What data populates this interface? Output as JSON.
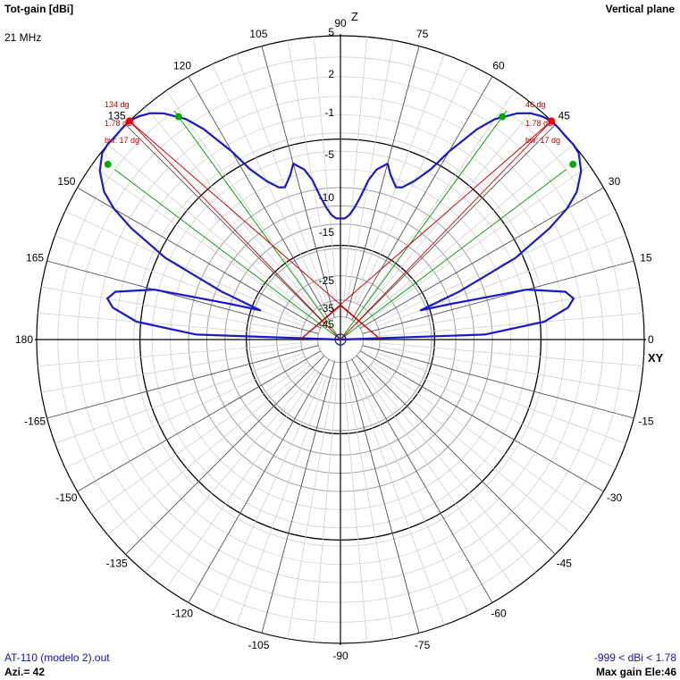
{
  "header": {
    "title": "Tot-gain [dBi]",
    "frequency": "21 MHz",
    "plane": "Vertical plane"
  },
  "footer": {
    "file": "AT-110 (modelo 2).out",
    "azimuth": "Azi.= 42",
    "range": "-999 < dBi < 1.78",
    "max_gain": "Max gain Ele:46"
  },
  "colors": {
    "pattern": "#1a1ac8",
    "marker_lines": "#c80000",
    "beamwidth_lines": "#009600",
    "grid": "#a0a0a0",
    "axes": "#000000"
  },
  "chart_data": {
    "type": "polar",
    "title": "Tot-gain [dBi]",
    "radial_scale_labels": [
      "5",
      "2",
      "-1",
      "-5",
      "-10",
      "-15",
      "-25",
      "-35",
      "-45"
    ],
    "angle_labels": [
      "0",
      "15",
      "30",
      "45",
      "60",
      "75",
      "90",
      "105",
      "120",
      "135",
      "150",
      "165",
      "180",
      "-165",
      "-150",
      "-135",
      "-120",
      "-105",
      "-90",
      "-75",
      "-60",
      "-45",
      "-30",
      "-15"
    ],
    "axis_labels": {
      "vertical": "Z",
      "horizontal": "XY"
    },
    "series": [
      {
        "elevation_deg": [
          0,
          2,
          5,
          8,
          10,
          12,
          15,
          18,
          20,
          22,
          25,
          28,
          30,
          32,
          35,
          38,
          40,
          42,
          44,
          46,
          48,
          50,
          52,
          55,
          57,
          60,
          62,
          65,
          68,
          70,
          73,
          75,
          78,
          80,
          82,
          84,
          86,
          88,
          90
        ],
        "gain_dbi": [
          -999,
          -11,
          -5,
          -3,
          -2.5,
          -3,
          -6,
          -15,
          -20,
          -13,
          -6,
          -2.5,
          -0.8,
          0.3,
          1.2,
          1.7,
          1.78,
          1.75,
          1.78,
          1.78,
          1.6,
          1.3,
          0.8,
          -0.3,
          -1.5,
          -4,
          -6,
          -7.7,
          -8.8,
          -9,
          -8,
          -7,
          -7.8,
          -9,
          -11,
          -12.5,
          -13.5,
          -14,
          -14
        ]
      }
    ],
    "markers": [
      {
        "elevation_deg": 46,
        "label": "46 dg",
        "gain_label": "1.78 dBi",
        "bw_label": "bw: 17 dg"
      },
      {
        "elevation_deg": 134,
        "label": "134 dg",
        "gain_label": "1.78 dBi",
        "bw_label": "bw: 17 dg"
      }
    ],
    "beamwidth_edges_deg": [
      37,
      54,
      126,
      143
    ]
  }
}
